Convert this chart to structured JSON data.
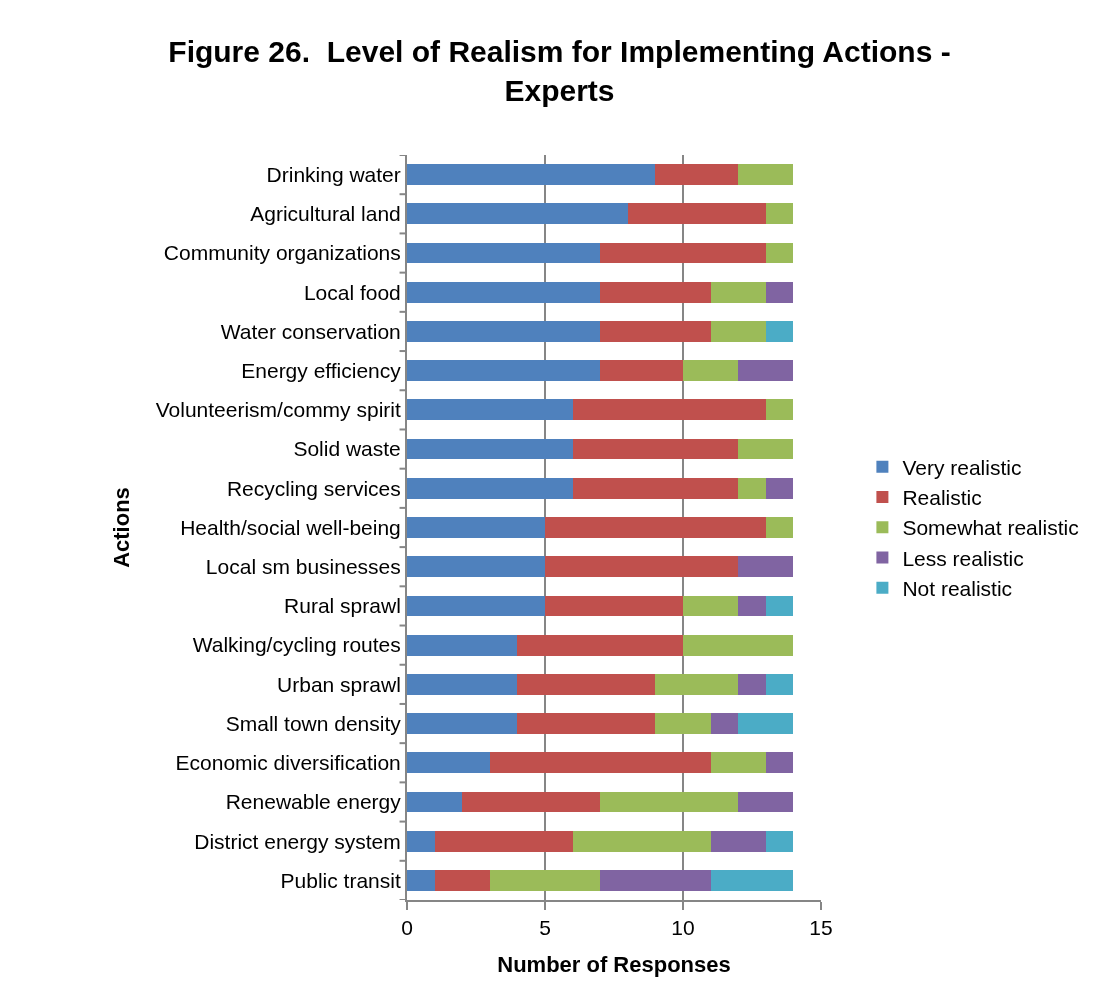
{
  "chart_data": {
    "type": "bar",
    "orientation": "horizontal",
    "stacked": true,
    "title": "Figure 26.  Level of Realism for Implementing Actions - Experts",
    "xlabel": "Number of Responses",
    "ylabel": "Actions",
    "categories": [
      "Drinking water",
      "Agricultural land",
      "Community organizations",
      "Local food",
      "Water conservation",
      "Energy efficiency",
      "Volunteerism/commy spirit",
      "Solid waste",
      "Recycling services",
      "Health/social well-being",
      "Local sm businesses",
      "Rural sprawl",
      "Walking/cycling routes",
      "Urban sprawl",
      "Small town density",
      "Economic diversification",
      "Renewable energy",
      "District energy system",
      "Public transit"
    ],
    "series": [
      {
        "name": "Very realistic",
        "color": "#4f81bd",
        "values": [
          9,
          8,
          7,
          7,
          7,
          7,
          6,
          6,
          6,
          5,
          5,
          5,
          4,
          4,
          4,
          3,
          2,
          1,
          1
        ]
      },
      {
        "name": "Realistic",
        "color": "#c0504d",
        "values": [
          3,
          5,
          6,
          4,
          4,
          3,
          7,
          6,
          6,
          8,
          7,
          5,
          6,
          5,
          5,
          8,
          5,
          5,
          2
        ]
      },
      {
        "name": "Somewhat realistic",
        "color": "#9bbb59",
        "values": [
          2,
          1,
          1,
          2,
          2,
          2,
          1,
          2,
          1,
          1,
          null,
          2,
          4,
          3,
          2,
          2,
          5,
          5,
          4
        ]
      },
      {
        "name": "Less realistic",
        "color": "#8064a2",
        "values": [
          null,
          null,
          null,
          1,
          null,
          2,
          null,
          null,
          1,
          null,
          2,
          1,
          null,
          1,
          1,
          1,
          2,
          2,
          4
        ]
      },
      {
        "name": "Not realistic",
        "color": "#4bacc6",
        "values": [
          null,
          null,
          null,
          null,
          1,
          null,
          null,
          null,
          null,
          null,
          null,
          1,
          null,
          1,
          2,
          null,
          null,
          1,
          3
        ]
      }
    ],
    "xlim": [
      0,
      15
    ],
    "xticks": [
      0,
      5,
      10,
      15
    ],
    "grid": "x",
    "legend": "right"
  }
}
